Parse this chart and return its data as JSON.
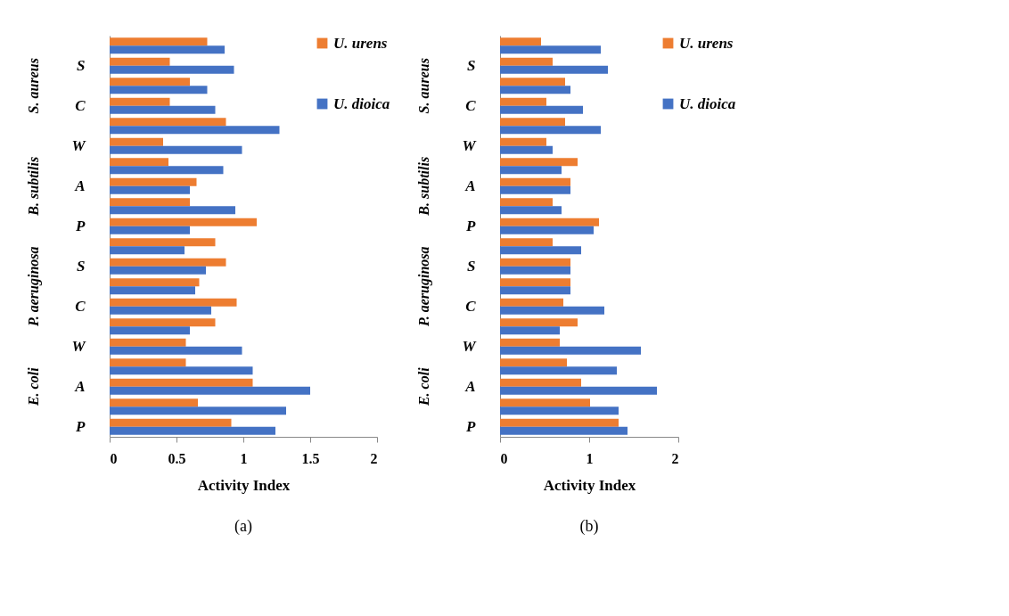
{
  "chart_data": [
    {
      "type": "bar",
      "orientation": "horizontal",
      "title": "(a)",
      "xlabel": "Activity Index",
      "categories": [
        null,
        "S",
        null,
        "C",
        null,
        "W",
        null,
        "A",
        null,
        "P",
        null,
        "S",
        null,
        "C",
        null,
        "W",
        null,
        "A",
        null,
        "P"
      ],
      "annotations": [
        "S. aureus",
        "B. subtilis",
        "P. aeruginosa",
        "E. coli"
      ],
      "series": [
        {
          "name": "U. urens",
          "color": "#ed7d31",
          "values": [
            0.73,
            0.45,
            0.6,
            0.45,
            0.87,
            0.4,
            0.44,
            0.65,
            0.6,
            1.1,
            0.79,
            0.87,
            0.67,
            0.95,
            0.79,
            0.57,
            0.57,
            1.07,
            0.66,
            0.91
          ]
        },
        {
          "name": "U. dioica",
          "color": "#4472c4",
          "values": [
            0.86,
            0.93,
            0.73,
            0.79,
            1.27,
            0.99,
            0.85,
            0.6,
            0.94,
            0.6,
            0.56,
            0.72,
            0.64,
            0.76,
            0.6,
            0.99,
            1.07,
            1.5,
            1.32,
            1.24
          ]
        }
      ],
      "xlim": [
        0,
        2
      ],
      "xticks": [
        0,
        0.5,
        1,
        1.5,
        2
      ],
      "grid": false,
      "legend": "right"
    },
    {
      "type": "bar",
      "orientation": "horizontal",
      "title": "(b)",
      "xlabel": "Activity Index",
      "categories": [
        null,
        "S",
        null,
        "C",
        null,
        "W",
        null,
        "A",
        null,
        "P",
        null,
        "S",
        null,
        "C",
        null,
        "W",
        null,
        "A",
        null,
        "P"
      ],
      "annotations": [
        "S. aureus",
        "B. subtilis",
        "P. aeruginosa",
        "E. coli"
      ],
      "series": [
        {
          "name": "U. urens",
          "color": "#ed7d31",
          "values": [
            0.46,
            0.59,
            0.73,
            0.52,
            0.73,
            0.52,
            0.87,
            0.79,
            0.59,
            1.11,
            0.59,
            0.79,
            0.79,
            0.71,
            0.87,
            0.67,
            0.75,
            0.91,
            1.01,
            1.33
          ]
        },
        {
          "name": "U. dioica",
          "color": "#4472c4",
          "values": [
            1.13,
            1.21,
            0.79,
            0.93,
            1.13,
            0.59,
            0.69,
            0.79,
            0.69,
            1.05,
            0.91,
            0.79,
            0.79,
            1.17,
            0.67,
            1.58,
            1.31,
            1.76,
            1.33,
            1.43
          ]
        }
      ],
      "xlim": [
        0,
        2
      ],
      "xticks": [
        0,
        1,
        2
      ],
      "grid": false,
      "legend": "right"
    }
  ]
}
